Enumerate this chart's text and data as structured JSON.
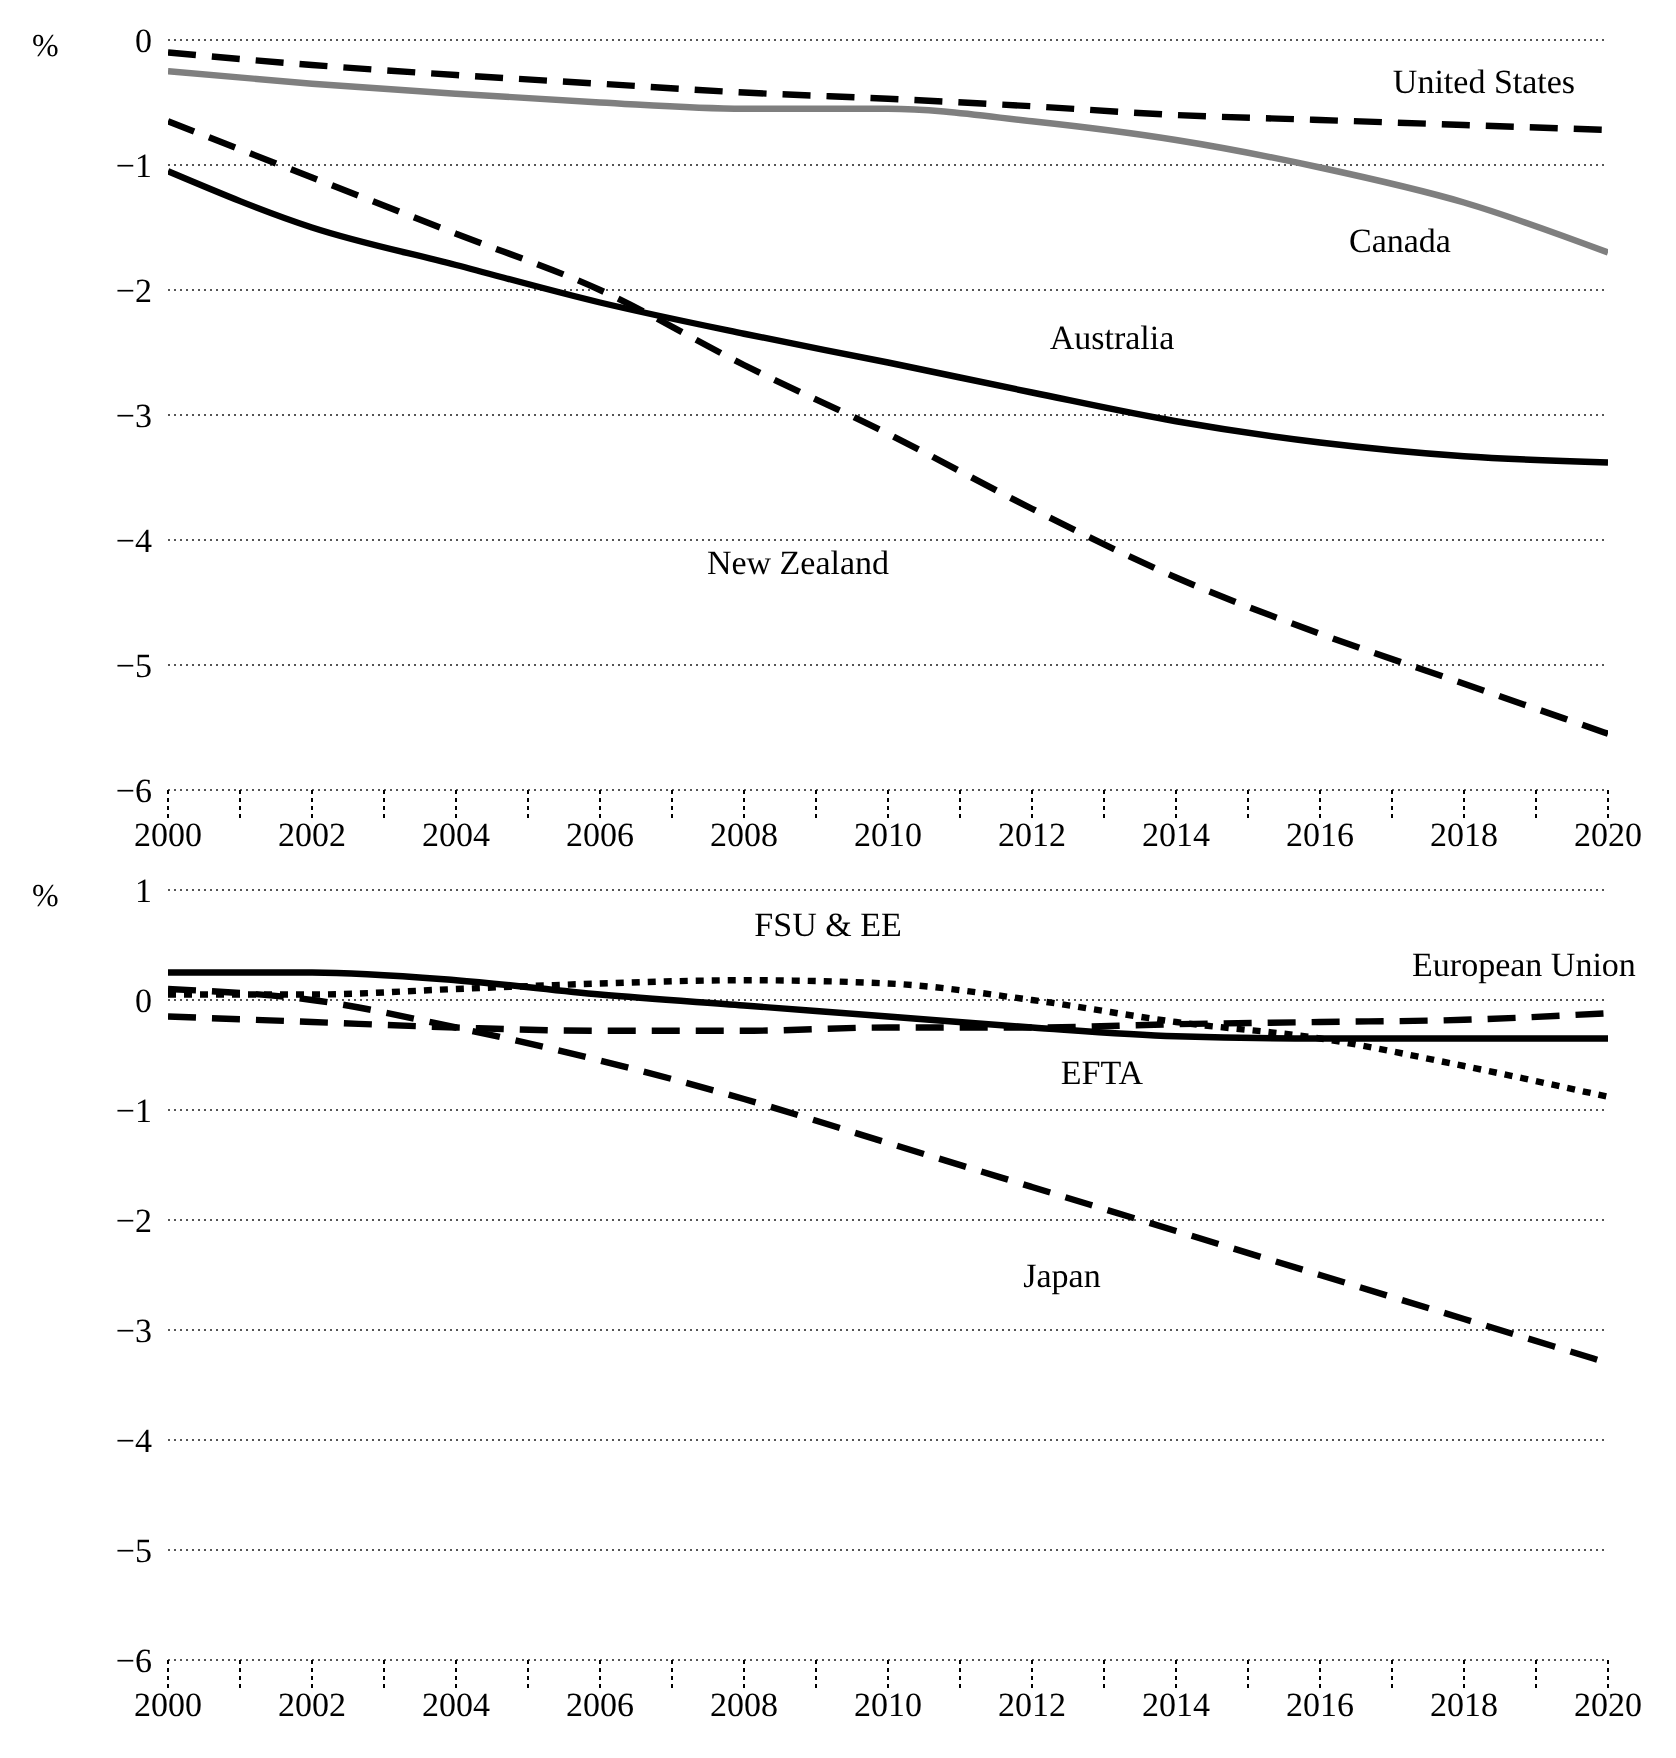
{
  "chart_data": [
    {
      "type": "line",
      "ylabel": "%",
      "x": [
        2000,
        2002,
        2004,
        2006,
        2008,
        2010,
        2012,
        2014,
        2016,
        2018,
        2020
      ],
      "xlim": [
        2000,
        2020
      ],
      "xticks": [
        2000,
        {
          "value": 2001,
          "label": null
        },
        2002,
        {
          "value": 2003,
          "label": null
        },
        2004,
        {
          "value": 2005,
          "label": null
        },
        2006,
        {
          "value": 2007,
          "label": null
        },
        2008,
        {
          "value": 2009,
          "label": null
        },
        2010,
        {
          "value": 2011,
          "label": null
        },
        2012,
        {
          "value": 2013,
          "label": null
        },
        2014,
        {
          "value": 2015,
          "label": null
        },
        2016,
        {
          "value": 2017,
          "label": null
        },
        2018,
        {
          "value": 2019,
          "label": null
        },
        2020
      ],
      "ylim": [
        -6,
        0
      ],
      "yticks": [
        -6,
        -5,
        -4,
        -3,
        -2,
        -1,
        0
      ],
      "grid": "y",
      "legend": false,
      "marker": "none",
      "series": [
        {
          "name": "United States",
          "color": "#000000",
          "line_style": "dashed",
          "values": [
            -0.1,
            -0.2,
            -0.28,
            -0.35,
            -0.42,
            -0.47,
            -0.53,
            -0.6,
            -0.64,
            -0.68,
            -0.72
          ]
        },
        {
          "name": "Canada",
          "color": "#7f7f7f",
          "line_style": "solid",
          "values": [
            -0.25,
            -0.35,
            -0.43,
            -0.5,
            -0.55,
            -0.55,
            -0.65,
            -0.8,
            -1.02,
            -1.3,
            -1.7
          ]
        },
        {
          "name": "Australia",
          "color": "#000000",
          "line_style": "solid",
          "values": [
            -1.05,
            -1.5,
            -1.8,
            -2.1,
            -2.35,
            -2.58,
            -2.82,
            -3.05,
            -3.22,
            -3.33,
            -3.38
          ]
        },
        {
          "name": "New Zealand",
          "color": "#000000",
          "line_style": "dashed",
          "values": [
            -0.65,
            -1.1,
            -1.55,
            -2.0,
            -2.6,
            -3.15,
            -3.75,
            -4.3,
            -4.75,
            -5.15,
            -5.55
          ]
        }
      ]
    },
    {
      "type": "line",
      "ylabel": "%",
      "x": [
        2000,
        2002,
        2004,
        2006,
        2008,
        2010,
        2012,
        2014,
        2016,
        2018,
        2020
      ],
      "xlim": [
        2000,
        2020
      ],
      "xticks": [
        2000,
        {
          "value": 2001,
          "label": null
        },
        2002,
        {
          "value": 2003,
          "label": null
        },
        2004,
        {
          "value": 2005,
          "label": null
        },
        2006,
        {
          "value": 2007,
          "label": null
        },
        2008,
        {
          "value": 2009,
          "label": null
        },
        2010,
        {
          "value": 2011,
          "label": null
        },
        2012,
        {
          "value": 2013,
          "label": null
        },
        2014,
        {
          "value": 2015,
          "label": null
        },
        2016,
        {
          "value": 2017,
          "label": null
        },
        2018,
        {
          "value": 2019,
          "label": null
        },
        2020
      ],
      "ylim": [
        -6,
        1
      ],
      "yticks": [
        -6,
        -5,
        -4,
        -3,
        -2,
        -1,
        0,
        1
      ],
      "grid": "y",
      "legend": false,
      "marker": "none",
      "series": [
        {
          "name": "FSU & EE",
          "color": "#000000",
          "line_style": "dotted",
          "values": [
            0.05,
            0.05,
            0.1,
            0.15,
            0.18,
            0.15,
            0.0,
            -0.2,
            -0.35,
            -0.6,
            -0.88
          ]
        },
        {
          "name": "European Union",
          "color": "#000000",
          "line_style": "dashed",
          "values": [
            -0.15,
            -0.2,
            -0.25,
            -0.28,
            -0.28,
            -0.25,
            -0.25,
            -0.22,
            -0.2,
            -0.18,
            -0.12
          ]
        },
        {
          "name": "EFTA",
          "color": "#000000",
          "line_style": "solid",
          "values": [
            0.25,
            0.25,
            0.18,
            0.05,
            -0.05,
            -0.15,
            -0.25,
            -0.33,
            -0.35,
            -0.35,
            -0.35
          ]
        },
        {
          "name": "Japan",
          "color": "#000000",
          "line_style": "dashed",
          "values": [
            0.1,
            0.0,
            -0.25,
            -0.55,
            -0.9,
            -1.3,
            -1.7,
            -2.1,
            -2.5,
            -2.9,
            -3.3
          ]
        }
      ]
    }
  ]
}
